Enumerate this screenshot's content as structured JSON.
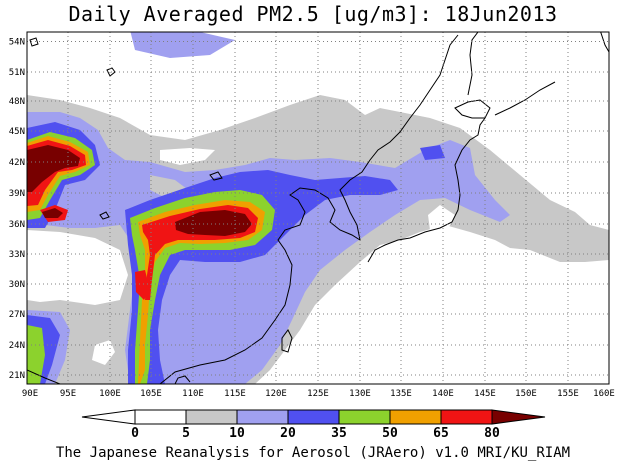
{
  "title": "Daily Averaged PM2.5 [ug/m3]: 18Jun2013",
  "footer": "The Japanese Reanalysis for Aerosol (JRAero) v1.0 MRI/KU_RIAM",
  "axes": {
    "lat_labels": [
      "54N",
      "51N",
      "48N",
      "45N",
      "42N",
      "39N",
      "36N",
      "33N",
      "30N",
      "27N",
      "24N",
      "21N"
    ],
    "lon_labels": [
      "90E",
      "95E",
      "100E",
      "105E",
      "110E",
      "115E",
      "120E",
      "125E",
      "130E",
      "135E",
      "140E",
      "145E",
      "150E",
      "155E",
      "160E"
    ]
  },
  "colorbar": {
    "levels": [
      "0",
      "5",
      "10",
      "20",
      "35",
      "50",
      "65",
      "80"
    ],
    "colors": [
      "#ffffff",
      "#c8c8c8",
      "#a0a0f0",
      "#5050f0",
      "#8cd22d",
      "#f0a000",
      "#f01414",
      "#780000"
    ]
  },
  "palette": {
    "white": "#ffffff",
    "gray": "#c8c8c8",
    "light_blue": "#a0a0f0",
    "blue": "#5050f0",
    "green": "#8cd22d",
    "orange": "#f0a000",
    "red": "#f01414",
    "dark_red": "#780000"
  }
}
